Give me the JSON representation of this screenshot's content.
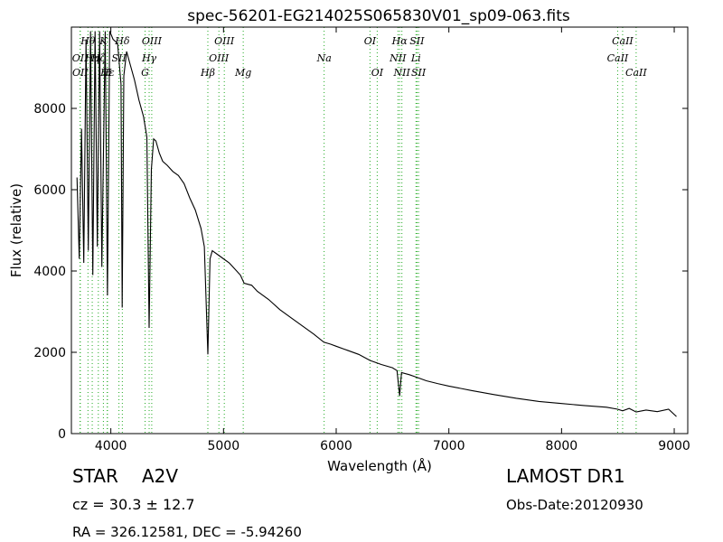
{
  "chart_data": {
    "type": "line",
    "title": "spec-56201-EG214025S065830V01_sp09-063.fits",
    "xlabel": "Wavelength (Å)",
    "ylabel": "Flux (relative)",
    "xlim": [
      3650,
      9120
    ],
    "ylim": [
      0,
      10000
    ],
    "x_ticks": [
      4000,
      5000,
      6000,
      7000,
      8000,
      9000
    ],
    "y_ticks": [
      0,
      2000,
      4000,
      6000,
      8000
    ],
    "grid": false,
    "line_color": "#000000",
    "marker_color": "#22aa22",
    "series": [
      {
        "points": [
          [
            3700,
            6300
          ],
          [
            3720,
            4300
          ],
          [
            3740,
            7500
          ],
          [
            3760,
            4200
          ],
          [
            3780,
            9700
          ],
          [
            3800,
            4500
          ],
          [
            3820,
            9900
          ],
          [
            3840,
            3900
          ],
          [
            3860,
            9900
          ],
          [
            3880,
            4600
          ],
          [
            3900,
            9900
          ],
          [
            3920,
            4100
          ],
          [
            3950,
            9900
          ],
          [
            3970,
            3400
          ],
          [
            3990,
            9900
          ],
          [
            4020,
            9700
          ],
          [
            4060,
            9600
          ],
          [
            4090,
            8600
          ],
          [
            4101,
            3100
          ],
          [
            4115,
            8800
          ],
          [
            4140,
            9400
          ],
          [
            4170,
            9100
          ],
          [
            4210,
            8700
          ],
          [
            4250,
            8200
          ],
          [
            4290,
            7800
          ],
          [
            4320,
            7300
          ],
          [
            4340,
            2600
          ],
          [
            4360,
            6500
          ],
          [
            4380,
            7250
          ],
          [
            4400,
            7200
          ],
          [
            4430,
            6900
          ],
          [
            4460,
            6700
          ],
          [
            4500,
            6600
          ],
          [
            4550,
            6450
          ],
          [
            4600,
            6350
          ],
          [
            4650,
            6150
          ],
          [
            4700,
            5800
          ],
          [
            4750,
            5500
          ],
          [
            4800,
            5050
          ],
          [
            4830,
            4600
          ],
          [
            4861,
            1950
          ],
          [
            4880,
            4300
          ],
          [
            4900,
            4500
          ],
          [
            4950,
            4400
          ],
          [
            5000,
            4300
          ],
          [
            5050,
            4200
          ],
          [
            5100,
            4050
          ],
          [
            5150,
            3900
          ],
          [
            5183,
            3700
          ],
          [
            5250,
            3650
          ],
          [
            5300,
            3500
          ],
          [
            5400,
            3300
          ],
          [
            5500,
            3050
          ],
          [
            5600,
            2850
          ],
          [
            5700,
            2650
          ],
          [
            5800,
            2450
          ],
          [
            5890,
            2250
          ],
          [
            5950,
            2200
          ],
          [
            6000,
            2150
          ],
          [
            6100,
            2050
          ],
          [
            6200,
            1950
          ],
          [
            6300,
            1800
          ],
          [
            6400,
            1700
          ],
          [
            6500,
            1620
          ],
          [
            6540,
            1550
          ],
          [
            6563,
            930
          ],
          [
            6580,
            1500
          ],
          [
            6650,
            1450
          ],
          [
            6700,
            1400
          ],
          [
            6800,
            1300
          ],
          [
            6900,
            1230
          ],
          [
            7000,
            1170
          ],
          [
            7200,
            1060
          ],
          [
            7400,
            960
          ],
          [
            7600,
            870
          ],
          [
            7800,
            790
          ],
          [
            8000,
            740
          ],
          [
            8200,
            690
          ],
          [
            8400,
            650
          ],
          [
            8498,
            600
          ],
          [
            8542,
            560
          ],
          [
            8600,
            620
          ],
          [
            8662,
            530
          ],
          [
            8750,
            580
          ],
          [
            8850,
            540
          ],
          [
            8950,
            600
          ],
          [
            9020,
            420
          ]
        ]
      }
    ],
    "lines": [
      {
        "name": "Hθ",
        "x": 3797,
        "row": 1
      },
      {
        "name": "K",
        "x": 3934,
        "row": 1
      },
      {
        "name": "Hδ",
        "x": 4102,
        "row": 1
      },
      {
        "name": "OIII",
        "x": 4363,
        "row": 1
      },
      {
        "name": "OIII",
        "x": 5007,
        "row": 1
      },
      {
        "name": "OI",
        "x": 6300,
        "row": 1
      },
      {
        "name": "Hα",
        "x": 6563,
        "row": 1
      },
      {
        "name": "SII",
        "x": 6717,
        "row": 1
      },
      {
        "name": "CaII",
        "x": 8542,
        "row": 1
      },
      {
        "name": "OII",
        "x": 3727,
        "row": 2
      },
      {
        "name": "Hη",
        "x": 3835,
        "row": 2
      },
      {
        "name": "Hζ",
        "x": 3889,
        "row": 2
      },
      {
        "name": "SII",
        "x": 4072,
        "row": 2
      },
      {
        "name": "Hγ",
        "x": 4340,
        "row": 2
      },
      {
        "name": "OIII",
        "x": 4959,
        "row": 2
      },
      {
        "name": "Na",
        "x": 5893,
        "row": 2
      },
      {
        "name": "NII",
        "x": 6548,
        "row": 2
      },
      {
        "name": "Li",
        "x": 6708,
        "row": 2
      },
      {
        "name": "CaII",
        "x": 8498,
        "row": 2
      },
      {
        "name": "OII",
        "x": 3729,
        "row": 3
      },
      {
        "name": "Hε",
        "x": 3970,
        "row": 3
      },
      {
        "name": "H",
        "x": 3968,
        "row": 3
      },
      {
        "name": "G",
        "x": 4304,
        "row": 3
      },
      {
        "name": "Hβ",
        "x": 4861,
        "row": 3
      },
      {
        "name": "Mg",
        "x": 5175,
        "row": 3
      },
      {
        "name": "OI",
        "x": 6364,
        "row": 3
      },
      {
        "name": "NII",
        "x": 6583,
        "row": 3
      },
      {
        "name": "SII",
        "x": 6731,
        "row": 3
      },
      {
        "name": "CaII",
        "x": 8662,
        "row": 3
      }
    ]
  },
  "info": {
    "object_class": "STAR",
    "subclass": "A2V",
    "survey": "LAMOST DR1",
    "cz": "cz = 30.3  ± 12.7",
    "obs_date": "Obs-Date:20120930",
    "coords": "RA = 326.12581, DEC = -5.94260"
  }
}
